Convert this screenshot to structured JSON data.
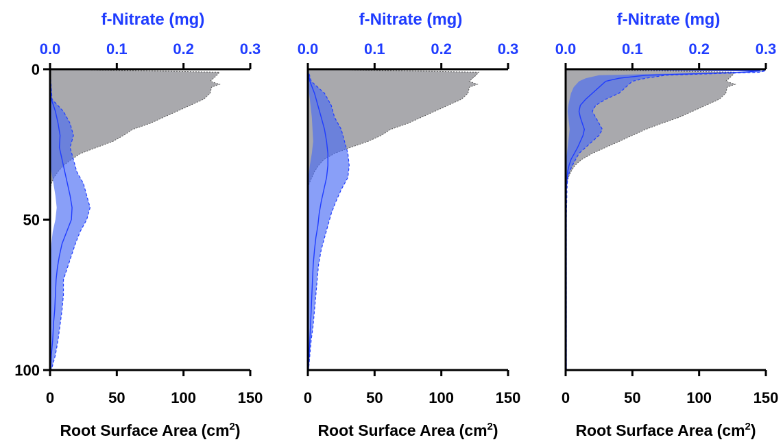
{
  "chart_data": [
    {
      "type": "area",
      "top_axis": {
        "label": "f-Nitrate (mg)",
        "range": [
          0.0,
          0.3
        ],
        "ticks": [
          "0.0",
          "0.1",
          "0.2",
          "0.3"
        ],
        "color": "#1f3cff"
      },
      "bottom_axis": {
        "label": "Root Surface Area (cm",
        "label_sup": "2",
        "label_suffix": ")",
        "range": [
          0,
          150
        ],
        "ticks": [
          "0",
          "50",
          "100",
          "150"
        ]
      },
      "y_axis": {
        "range": [
          0,
          100
        ],
        "inverted": true,
        "ticks": [
          "0",
          "50",
          "100"
        ]
      },
      "root_area": {
        "color": "#a9a9ad",
        "depth": [
          0,
          1,
          2,
          4,
          5,
          6,
          8,
          10,
          12,
          14,
          16,
          18,
          20,
          22,
          24,
          26,
          28,
          30,
          32,
          34,
          36,
          38,
          40
        ],
        "values": [
          0,
          127,
          125,
          120,
          127,
          121,
          120,
          115,
          105,
          95,
          85,
          75,
          62,
          55,
          47,
          35,
          23,
          16,
          10,
          6,
          3,
          1,
          0
        ]
      },
      "nitrate": {
        "fill_color": "#4a6cf5",
        "depth": [
          0,
          10,
          14,
          18,
          22,
          26,
          30,
          34,
          38,
          42,
          46,
          50,
          54,
          58,
          62,
          66,
          70,
          75,
          80,
          85,
          90,
          95,
          100
        ],
        "upper": [
          0,
          0.003,
          0.02,
          0.03,
          0.035,
          0.03,
          0.035,
          0.04,
          0.05,
          0.055,
          0.06,
          0.055,
          0.045,
          0.038,
          0.032,
          0.026,
          0.02,
          0.02,
          0.018,
          0.015,
          0.012,
          0.008,
          0.002
        ],
        "mean": [
          0,
          0.002,
          0.008,
          0.012,
          0.015,
          0.014,
          0.018,
          0.022,
          0.026,
          0.03,
          0.033,
          0.032,
          0.025,
          0.018,
          0.014,
          0.011,
          0.009,
          0.008,
          0.007,
          0.005,
          0.004,
          0.002,
          0.001
        ],
        "lower": [
          0,
          0,
          0,
          0,
          0,
          0,
          0,
          0.002,
          0.005,
          0.008,
          0.01,
          0.008,
          0.004,
          0.002,
          0.001,
          0,
          0,
          0,
          0,
          0,
          0,
          0,
          0
        ]
      }
    },
    {
      "type": "area",
      "top_axis": {
        "label": "f-Nitrate (mg)",
        "range": [
          0.0,
          0.3
        ],
        "ticks": [
          "0.0",
          "0.1",
          "0.2",
          "0.3"
        ],
        "color": "#1f3cff"
      },
      "bottom_axis": {
        "label": "Root Surface Area (cm",
        "label_sup": "2",
        "label_suffix": ")",
        "range": [
          0,
          150
        ],
        "ticks": [
          "0",
          "50",
          "100",
          "150"
        ]
      },
      "y_axis": {
        "range": [
          0,
          100
        ],
        "inverted": false,
        "ticks": []
      },
      "root_area": {
        "color": "#a9a9ad",
        "depth": [
          0,
          1,
          2,
          4,
          5,
          6,
          8,
          10,
          12,
          14,
          16,
          18,
          20,
          22,
          24,
          26,
          28,
          30,
          32,
          34,
          36,
          38,
          40
        ],
        "values": [
          0,
          128,
          126,
          121,
          127,
          121,
          120,
          115,
          105,
          95,
          85,
          75,
          62,
          55,
          45,
          32,
          20,
          12,
          8,
          5,
          3,
          1,
          0
        ]
      },
      "nitrate": {
        "fill_color": "#4a6cf5",
        "depth": [
          0,
          4,
          8,
          12,
          16,
          20,
          24,
          28,
          32,
          36,
          40,
          44,
          48,
          52,
          56,
          60,
          65,
          70,
          75,
          80,
          85,
          90,
          95,
          100
        ],
        "upper": [
          0,
          0.005,
          0.025,
          0.035,
          0.04,
          0.05,
          0.055,
          0.06,
          0.062,
          0.06,
          0.05,
          0.042,
          0.035,
          0.03,
          0.025,
          0.02,
          0.016,
          0.014,
          0.012,
          0.01,
          0.008,
          0.005,
          0.003,
          0.001
        ],
        "mean": [
          0,
          0.003,
          0.01,
          0.015,
          0.02,
          0.025,
          0.028,
          0.03,
          0.03,
          0.028,
          0.024,
          0.02,
          0.017,
          0.015,
          0.012,
          0.01,
          0.008,
          0.007,
          0.006,
          0.005,
          0.004,
          0.003,
          0.002,
          0.001
        ],
        "lower": [
          0,
          0.001,
          0.002,
          0.004,
          0.006,
          0.007,
          0.008,
          0.006,
          0.003,
          0.001,
          0,
          0,
          0,
          0,
          0,
          0,
          0,
          0,
          0,
          0,
          0,
          0,
          0,
          0
        ]
      }
    },
    {
      "type": "area",
      "top_axis": {
        "label": "f-Nitrate (mg)",
        "range": [
          0.0,
          0.3
        ],
        "ticks": [
          "0.0",
          "0.1",
          "0.2",
          "0.3"
        ],
        "color": "#1f3cff"
      },
      "bottom_axis": {
        "label": "Root Surface Area (cm",
        "label_sup": "2",
        "label_suffix": ")",
        "range": [
          0,
          150
        ],
        "ticks": [
          "0",
          "50",
          "100",
          "150"
        ]
      },
      "y_axis": {
        "range": [
          0,
          100
        ],
        "inverted": false,
        "ticks": []
      },
      "root_area": {
        "color": "#a9a9ad",
        "depth": [
          0,
          1,
          2,
          4,
          5,
          6,
          8,
          10,
          12,
          14,
          16,
          18,
          20,
          22,
          24,
          26,
          28,
          30,
          32,
          34,
          36,
          38,
          40
        ],
        "values": [
          0,
          127,
          125,
          120,
          127,
          121,
          120,
          115,
          105,
          95,
          85,
          72,
          60,
          50,
          40,
          30,
          20,
          12,
          7,
          4,
          2,
          1,
          0
        ]
      },
      "nitrate": {
        "fill_color": "#4a6cf5",
        "depth": [
          0,
          0.5,
          1,
          2,
          3,
          4,
          6,
          8,
          10,
          12,
          14,
          16,
          18,
          20,
          22,
          24,
          26,
          28,
          30,
          32,
          34,
          36,
          40,
          50,
          70,
          100
        ],
        "upper": [
          0,
          0.3,
          0.29,
          0.15,
          0.12,
          0.1,
          0.09,
          0.08,
          0.06,
          0.045,
          0.04,
          0.045,
          0.05,
          0.055,
          0.05,
          0.04,
          0.03,
          0.02,
          0.015,
          0.01,
          0.006,
          0.003,
          0.002,
          0.001,
          0.001,
          0.001
        ],
        "mean": [
          0,
          0.29,
          0.27,
          0.12,
          0.08,
          0.06,
          0.05,
          0.04,
          0.03,
          0.022,
          0.02,
          0.022,
          0.025,
          0.028,
          0.026,
          0.022,
          0.018,
          0.013,
          0.008,
          0.005,
          0.003,
          0.002,
          0.001,
          0.001,
          0.001,
          0.001
        ],
        "lower": [
          0,
          0.28,
          0.25,
          0.05,
          0.03,
          0.02,
          0.012,
          0.008,
          0.006,
          0.004,
          0.003,
          0.004,
          0.005,
          0.006,
          0.005,
          0.004,
          0.003,
          0.002,
          0.001,
          0,
          0,
          0,
          0,
          0,
          0,
          0
        ]
      }
    }
  ]
}
